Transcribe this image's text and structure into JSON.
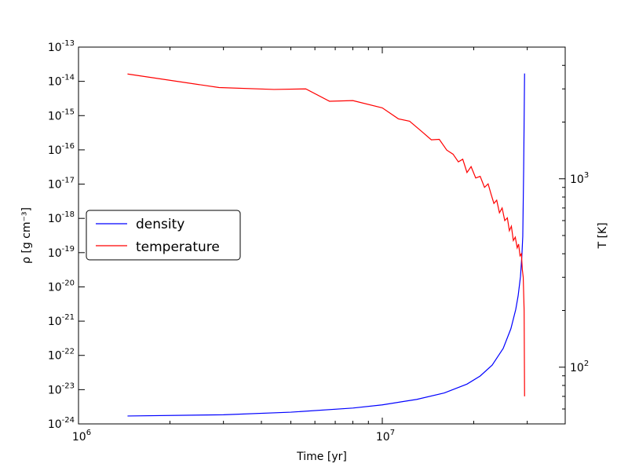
{
  "chart_data": {
    "type": "line",
    "title": "",
    "xlabel": "Time [yr]",
    "ylabel_left": "ρ [g cm⁻³]",
    "ylabel_right": "T [K]",
    "xscale": "log",
    "yscale_left": "log",
    "yscale_right": "log",
    "xlim": [
      1000000,
      40000000
    ],
    "ylim_left": [
      1e-24,
      1e-13
    ],
    "ylim_right": [
      50,
      5000
    ],
    "x_ticks": [
      {
        "value": 1000000,
        "label": "10",
        "exp": "6"
      },
      {
        "value": 10000000,
        "label": "10",
        "exp": "7"
      }
    ],
    "y_ticks_left": [
      {
        "value": 1e-24,
        "label": "10",
        "exp": "-24"
      },
      {
        "value": 1e-23,
        "label": "10",
        "exp": "-23"
      },
      {
        "value": 1e-22,
        "label": "10",
        "exp": "-22"
      },
      {
        "value": 1e-21,
        "label": "10",
        "exp": "-21"
      },
      {
        "value": 1e-20,
        "label": "10",
        "exp": "-20"
      },
      {
        "value": 1e-19,
        "label": "10",
        "exp": "-19"
      },
      {
        "value": 1e-18,
        "label": "10",
        "exp": "-18"
      },
      {
        "value": 1e-17,
        "label": "10",
        "exp": "-17"
      },
      {
        "value": 1e-16,
        "label": "10",
        "exp": "-16"
      },
      {
        "value": 1e-15,
        "label": "10",
        "exp": "-15"
      },
      {
        "value": 1e-14,
        "label": "10",
        "exp": "-14"
      },
      {
        "value": 1e-13,
        "label": "10",
        "exp": "-13"
      }
    ],
    "y_ticks_right": [
      {
        "value": 100,
        "label": "10",
        "exp": "2"
      },
      {
        "value": 1000,
        "label": "10",
        "exp": "3"
      }
    ],
    "legend_position": "center-left",
    "grid": false,
    "series": [
      {
        "name": "density",
        "color": "#0000ff",
        "axis": "left",
        "x": [
          1450000,
          3000000,
          5000000,
          8000000,
          10000000,
          13000000,
          16000000,
          19000000,
          21000000,
          23000000,
          25000000,
          26500000,
          27500000,
          28000000,
          28500000,
          28800000,
          29000000,
          29200000,
          29400000
        ],
        "y": [
          1.7e-24,
          1.85e-24,
          2.2e-24,
          2.9e-24,
          3.6e-24,
          5.2e-24,
          8e-24,
          1.45e-23,
          2.5e-23,
          5.2e-23,
          1.6e-22,
          6e-22,
          2.2e-21,
          5.5e-21,
          2e-20,
          8e-20,
          3e-19,
          3e-17,
          1.7e-14
        ]
      },
      {
        "name": "temperature",
        "color": "#ff0000",
        "axis": "right",
        "x": [
          1450000,
          2900000,
          4400000,
          5600000,
          6700000,
          8000000,
          10000000,
          11300000,
          12300000,
          13500000,
          14500000,
          15400000,
          16300000,
          17100000,
          17800000,
          18400000,
          19000000,
          19600000,
          20300000,
          21000000,
          21700000,
          22300000,
          22800000,
          23300000,
          23800000,
          24300000,
          24800000,
          25300000,
          25800000,
          26200000,
          26600000,
          27000000,
          27400000,
          27800000,
          28100000,
          28400000,
          28700000,
          28900000,
          29100000,
          29300000,
          29400000
        ],
        "y": [
          3600,
          3050,
          2980,
          3000,
          2580,
          2600,
          2380,
          2080,
          2020,
          1780,
          1610,
          1620,
          1420,
          1350,
          1230,
          1270,
          1080,
          1160,
          1010,
          1030,
          900,
          940,
          830,
          740,
          770,
          660,
          700,
          600,
          620,
          530,
          560,
          470,
          490,
          430,
          450,
          390,
          400,
          330,
          300,
          200,
          70
        ]
      }
    ]
  }
}
